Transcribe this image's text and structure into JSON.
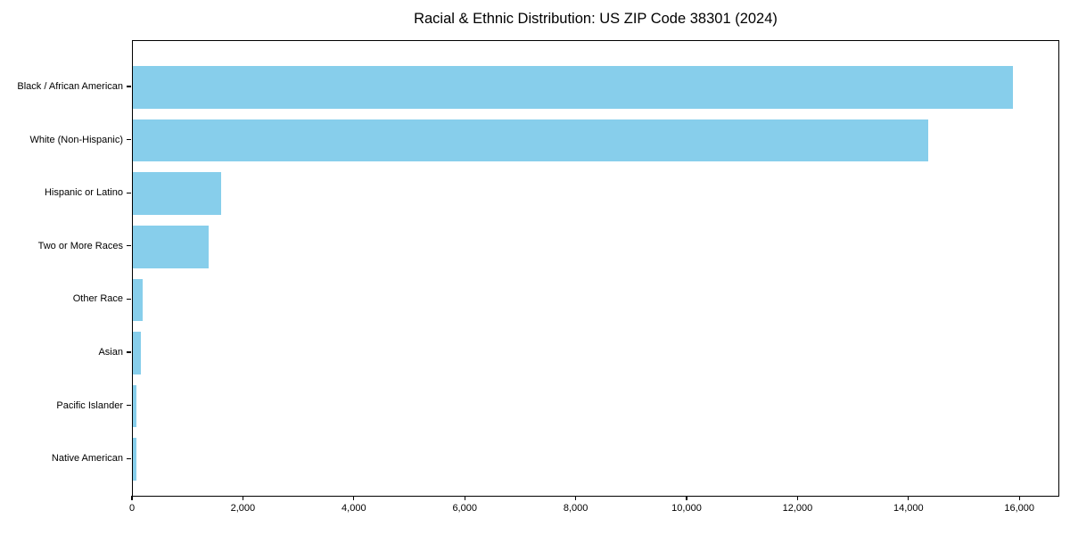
{
  "chart_data": {
    "type": "bar",
    "orientation": "horizontal",
    "title": "Racial & Ethnic Distribution: US ZIP Code 38301 (2024)",
    "categories": [
      "Black / African American",
      "White (Non-Hispanic)",
      "Hispanic or Latino",
      "Two or More Races",
      "Other Race",
      "Asian",
      "Pacific Islander",
      "Native American"
    ],
    "values": [
      15900,
      14370,
      1590,
      1370,
      185,
      150,
      70,
      65
    ],
    "xlabel": "",
    "ylabel": "",
    "xlim": [
      0,
      16720
    ],
    "xticks": [
      {
        "value": 0,
        "label": "0"
      },
      {
        "value": 2000,
        "label": "2,000"
      },
      {
        "value": 4000,
        "label": "4,000"
      },
      {
        "value": 6000,
        "label": "6,000"
      },
      {
        "value": 8000,
        "label": "8,000"
      },
      {
        "value": 10000,
        "label": "10,000"
      },
      {
        "value": 12000,
        "label": "12,000"
      },
      {
        "value": 14000,
        "label": "14,000"
      },
      {
        "value": 16000,
        "label": "16,000"
      }
    ],
    "grid": false,
    "legend": null,
    "bar_color": "#87CEEB",
    "background_color": "#FFFFFF",
    "spine_color": "#000000"
  }
}
